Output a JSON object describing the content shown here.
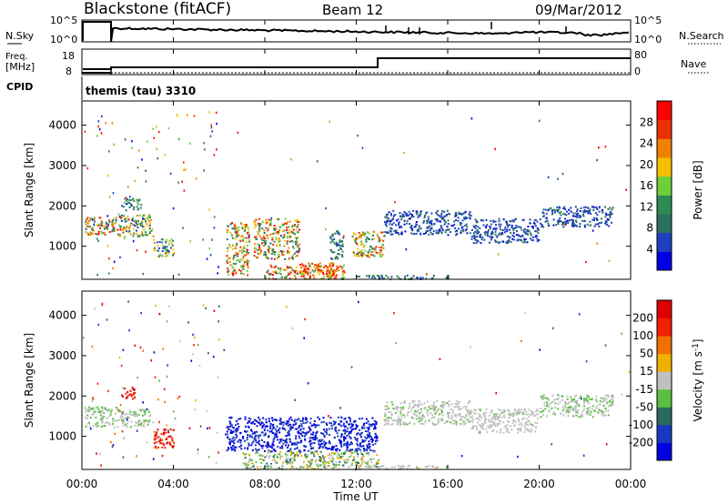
{
  "header": {
    "station": "Blackstone (fitACF)",
    "beam": "Beam 12",
    "date": "09/Mar/2012"
  },
  "noise_panel": {
    "left_label": "N.Sky",
    "right_label": "N.Search",
    "left_ticks": [
      "10^5",
      "10^0"
    ],
    "right_ticks": [
      "10^5",
      "10^0"
    ]
  },
  "freq_panel": {
    "left_label_1": "Freq.",
    "left_label_2": "[MHz]",
    "right_label": "Nave",
    "left_ticks": [
      "18",
      "8"
    ],
    "right_ticks": [
      "80",
      "0"
    ],
    "cpid_label": "CPID",
    "cpid_value": "themis (tau) 3310"
  },
  "power_panel": {
    "ylabel": "Slant Range [km]",
    "yticks": [
      "4000",
      "3000",
      "2000",
      "1000"
    ],
    "colorbar_label": "Power [dB]",
    "colorbar_ticks": [
      "28",
      "24",
      "20",
      "16",
      "12",
      "8",
      "4"
    ],
    "colors": [
      "#0000e6",
      "#2040c0",
      "#2a7060",
      "#2e8a55",
      "#6fcf3a",
      "#f5c000",
      "#f08000",
      "#e83000",
      "#ff0000"
    ]
  },
  "velocity_panel": {
    "ylabel": "Slant Range [km]",
    "yticks": [
      "4000",
      "3000",
      "2000",
      "1000"
    ],
    "colorbar_label": "Velocity [m s^-1]",
    "colorbar_ticks": [
      "200",
      "100",
      "50",
      "15",
      "-15",
      "-50",
      "-100",
      "-200"
    ],
    "colors": [
      "#0000e0",
      "#1838c0",
      "#2a6a60",
      "#5abf40",
      "#c0c0c0",
      "#f0b000",
      "#f07000",
      "#f02000",
      "#e00000"
    ]
  },
  "time_axis": {
    "ticks": [
      "00:00",
      "04:00",
      "08:00",
      "12:00",
      "16:00",
      "20:00",
      "00:00"
    ],
    "label": "Time UT"
  },
  "chart_data": [
    {
      "type": "heatmap",
      "name": "Power",
      "xlabel": "Time UT",
      "ylabel": "Slant Range [km]",
      "xlim": [
        0,
        24
      ],
      "ylim": [
        180,
        4600
      ],
      "zlabel": "Power [dB]",
      "zlim": [
        0,
        32
      ],
      "clusters": [
        {
          "t": [
            0.1,
            1.6
          ],
          "r": [
            1300,
            1750
          ],
          "z": [
            6,
            30
          ]
        },
        {
          "t": [
            1.7,
            2.6
          ],
          "r": [
            1900,
            2200
          ],
          "z": [
            4,
            16
          ]
        },
        {
          "t": [
            1.6,
            3.1
          ],
          "r": [
            1250,
            1800
          ],
          "z": [
            5,
            24
          ]
        },
        {
          "t": [
            3.1,
            4.0
          ],
          "r": [
            750,
            1200
          ],
          "z": [
            4,
            22
          ]
        },
        {
          "t": [
            6.3,
            7.3
          ],
          "r": [
            300,
            1600
          ],
          "z": [
            8,
            30
          ]
        },
        {
          "t": [
            7.5,
            9.5
          ],
          "r": [
            700,
            1700
          ],
          "z": [
            6,
            30
          ]
        },
        {
          "t": [
            8.0,
            11.5
          ],
          "r": [
            200,
            550
          ],
          "z": [
            10,
            32
          ]
        },
        {
          "t": [
            9.5,
            11.0
          ],
          "r": [
            250,
            600
          ],
          "z": [
            14,
            32
          ]
        },
        {
          "t": [
            10.8,
            11.4
          ],
          "r": [
            700,
            1400
          ],
          "z": [
            4,
            14
          ]
        },
        {
          "t": [
            11.8,
            13.2
          ],
          "r": [
            750,
            1400
          ],
          "z": [
            8,
            30
          ]
        },
        {
          "t": [
            12.0,
            16.0
          ],
          "r": [
            200,
            300
          ],
          "z": [
            3,
            14
          ]
        },
        {
          "t": [
            13.2,
            17.0
          ],
          "r": [
            1300,
            1900
          ],
          "z": [
            3,
            9
          ]
        },
        {
          "t": [
            17.0,
            20.0
          ],
          "r": [
            1100,
            1700
          ],
          "z": [
            3,
            9
          ]
        },
        {
          "t": [
            20.0,
            23.2
          ],
          "r": [
            1500,
            2000
          ],
          "z": [
            3,
            10
          ]
        }
      ]
    },
    {
      "type": "heatmap",
      "name": "Velocity",
      "xlabel": "Time UT",
      "ylabel": "Slant Range [km]",
      "xlim": [
        0,
        24
      ],
      "ylim": [
        180,
        4600
      ],
      "zlabel": "Velocity [m s^-1]",
      "zlim": [
        -250,
        250
      ],
      "clusters": [
        {
          "t": [
            0.1,
            1.6
          ],
          "r": [
            1250,
            1750
          ],
          "z": [
            -20,
            60
          ]
        },
        {
          "t": [
            1.7,
            2.3
          ],
          "r": [
            1950,
            2250
          ],
          "z": [
            -250,
            -150
          ]
        },
        {
          "t": [
            1.6,
            3.1
          ],
          "r": [
            1250,
            1700
          ],
          "z": [
            -20,
            60
          ]
        },
        {
          "t": [
            3.1,
            4.0
          ],
          "r": [
            700,
            1200
          ],
          "z": [
            -250,
            -100
          ]
        },
        {
          "t": [
            6.3,
            12.9
          ],
          "r": [
            650,
            1500
          ],
          "z": [
            150,
            250
          ]
        },
        {
          "t": [
            7.0,
            13.0
          ],
          "r": [
            200,
            650
          ],
          "z": [
            -60,
            120
          ]
        },
        {
          "t": [
            12.0,
            16.0
          ],
          "r": [
            200,
            300
          ],
          "z": [
            -40,
            40
          ]
        },
        {
          "t": [
            13.2,
            17.0
          ],
          "r": [
            1300,
            1900
          ],
          "z": [
            -15,
            40
          ]
        },
        {
          "t": [
            17.0,
            20.0
          ],
          "r": [
            1100,
            1700
          ],
          "z": [
            -15,
            30
          ]
        },
        {
          "t": [
            20.0,
            23.2
          ],
          "r": [
            1500,
            2050
          ],
          "z": [
            -15,
            60
          ]
        }
      ]
    }
  ]
}
